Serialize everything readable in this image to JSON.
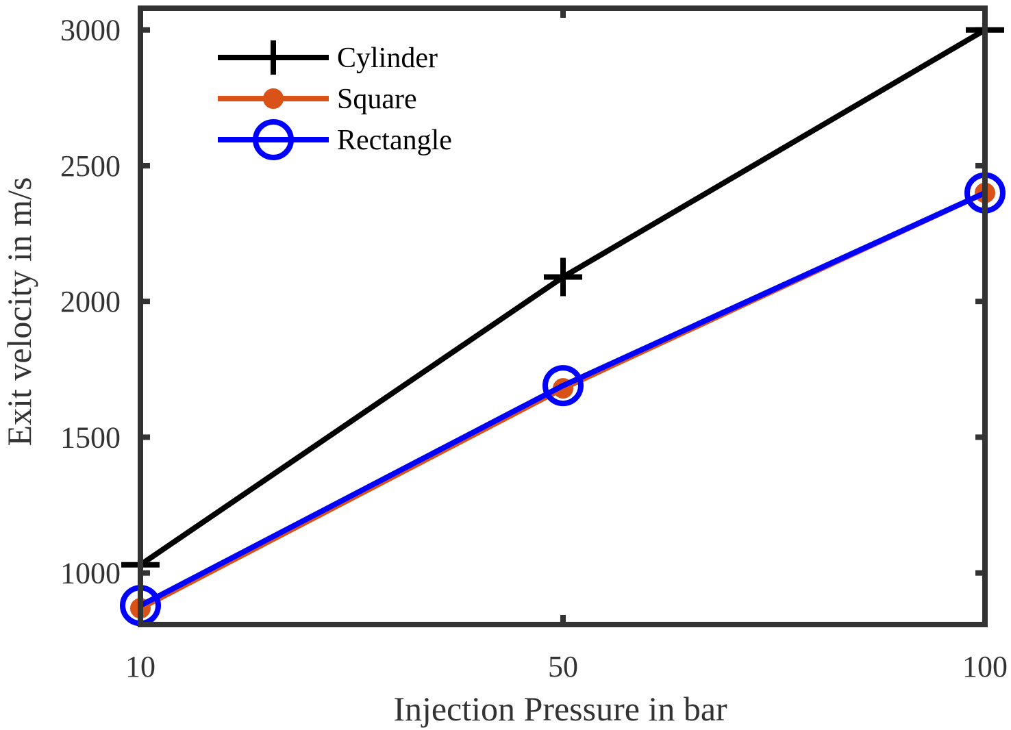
{
  "chart_data": {
    "type": "line",
    "title": "",
    "xlabel": "Injection Pressure in bar",
    "ylabel": "Exit velocity in m/s",
    "x_categories": [
      "10",
      "50",
      "100"
    ],
    "y_ticks": [
      1000,
      1500,
      2000,
      2500,
      3000
    ],
    "y_tick_labels": [
      "1000",
      "1500",
      "2000",
      "2500",
      "3000"
    ],
    "ylim": [
      810,
      3080
    ],
    "grid": false,
    "legend_position": "top-left",
    "series": [
      {
        "name": "Cylinder",
        "values": [
          1030,
          2090,
          3000
        ],
        "color": "#000000",
        "marker": "plus"
      },
      {
        "name": "Square",
        "values": [
          870,
          1680,
          2400
        ],
        "color": "#D95319",
        "marker": "filled-circle"
      },
      {
        "name": "Rectangle",
        "values": [
          880,
          1690,
          2400
        ],
        "color": "#0000FF",
        "marker": "open-circle"
      }
    ]
  }
}
